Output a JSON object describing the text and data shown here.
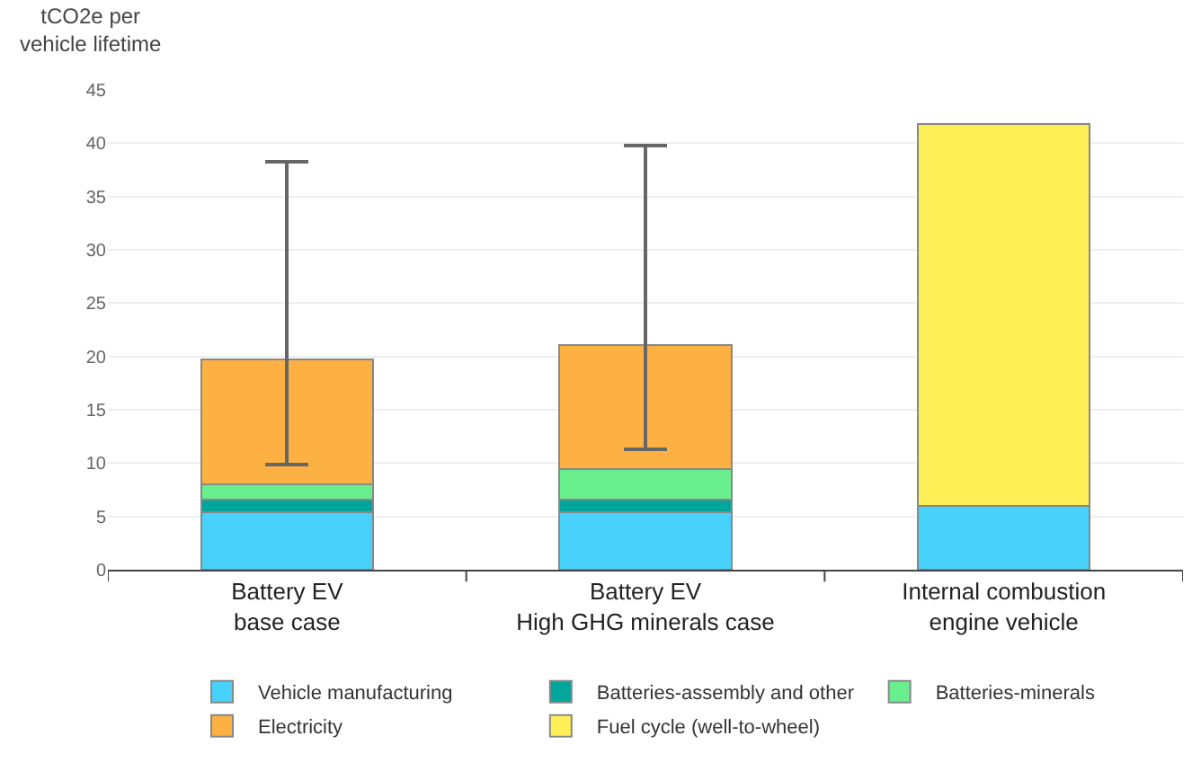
{
  "chart_data": {
    "type": "bar",
    "stacked": true,
    "ylabel": "tCO2e per vehicle lifetime",
    "categories": [
      "Battery EV\nbase case",
      "Battery EV\nHigh GHG minerals case",
      "Internal combustion\nengine vehicle"
    ],
    "series": [
      {
        "name": "Vehicle manufacturing",
        "color": "#48d1fa",
        "values": [
          5.4,
          5.4,
          6.0
        ]
      },
      {
        "name": "Batteries-assembly and other",
        "color": "#00a69b",
        "values": [
          1.2,
          1.2,
          null
        ]
      },
      {
        "name": "Batteries-minerals",
        "color": "#6aef8f",
        "values": [
          1.4,
          2.8,
          null
        ]
      },
      {
        "name": "Electricity",
        "color": "#fdb142",
        "values": [
          11.7,
          11.7,
          null
        ],
        "errors": [
          [
            9.9,
            38.3
          ],
          [
            11.3,
            39.8
          ],
          null
        ]
      },
      {
        "name": "Fuel cycle (well-to-wheel)",
        "color": "#fdef55",
        "values": [
          null,
          null,
          35.8
        ]
      }
    ],
    "ylim": [
      0,
      45
    ],
    "yticks": [
      0,
      5,
      10,
      15,
      20,
      25,
      30,
      35,
      40,
      45
    ],
    "grid": "y",
    "legend": "bottom"
  }
}
